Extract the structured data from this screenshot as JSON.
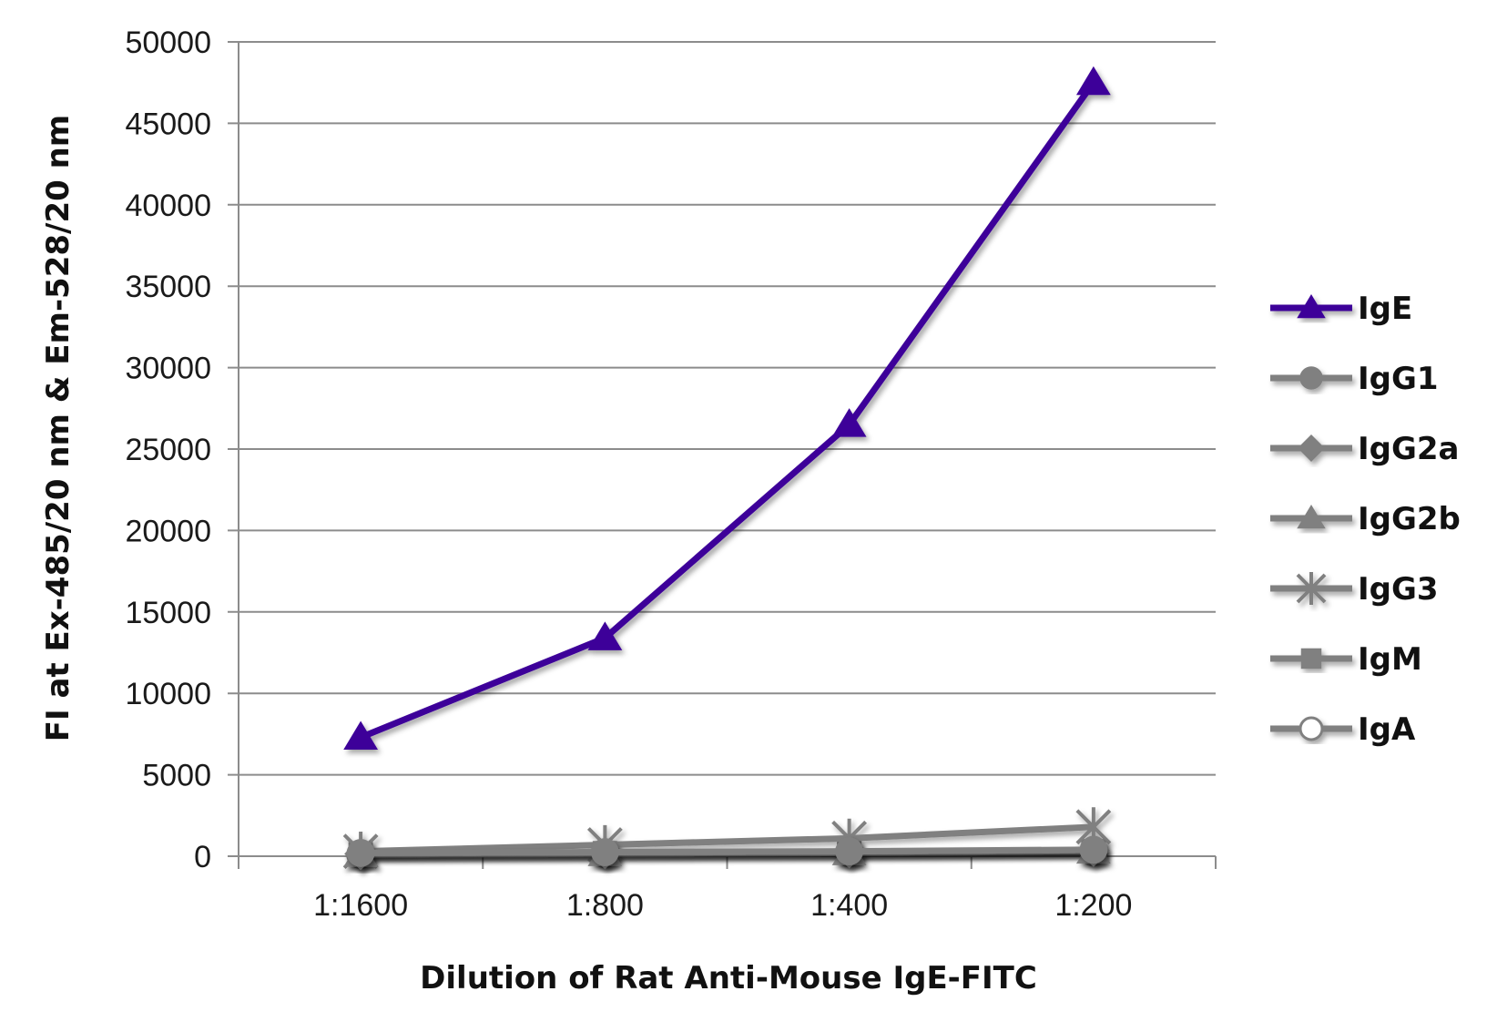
{
  "chart_data": {
    "type": "line",
    "title": "",
    "xlabel": "Dilution of Rat Anti-Mouse IgE-FITC",
    "ylabel": "FI at Ex-485/20 nm & Em-528/20 nm",
    "categories": [
      "1:1600",
      "1:800",
      "1:400",
      "1:200"
    ],
    "ylim": [
      0,
      50000
    ],
    "yticks": [
      "0",
      "5000",
      "10000",
      "15000",
      "20000",
      "25000",
      "30000",
      "35000",
      "40000",
      "45000",
      "50000"
    ],
    "grid": true,
    "legend": "right",
    "series": [
      {
        "name": "IgE",
        "color": "#3d0099",
        "marker": "triangle",
        "values": [
          7300,
          13400,
          26500,
          47500
        ]
      },
      {
        "name": "IgG1",
        "color": "#808080",
        "marker": "circle",
        "values": [
          200,
          250,
          300,
          400
        ]
      },
      {
        "name": "IgG2a",
        "color": "#808080",
        "marker": "diamond",
        "values": [
          150,
          200,
          250,
          350
        ]
      },
      {
        "name": "IgG2b",
        "color": "#808080",
        "marker": "triangle",
        "values": [
          100,
          150,
          200,
          300
        ]
      },
      {
        "name": "IgG3",
        "color": "#808080",
        "marker": "star",
        "values": [
          300,
          700,
          1100,
          1800
        ]
      },
      {
        "name": "IgM",
        "color": "#808080",
        "marker": "square",
        "values": [
          120,
          180,
          220,
          300
        ]
      },
      {
        "name": "IgA",
        "color": "#808080",
        "marker": "circle-open",
        "values": [
          100,
          150,
          200,
          250
        ]
      }
    ]
  }
}
